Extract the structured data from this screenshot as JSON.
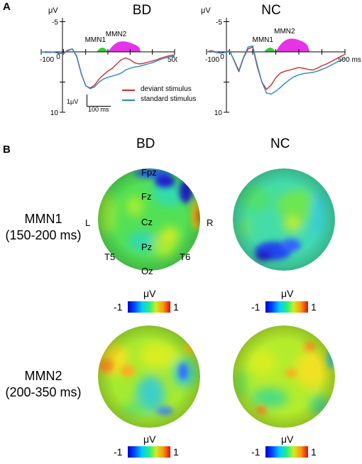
{
  "panel_a": {
    "letter": "A",
    "unit_label": "μV",
    "legend": {
      "deviant_label": "deviant stimulus",
      "standard_label": "standard stimulus",
      "deviant_color": "#d42a2a",
      "standard_color": "#2a86c9"
    },
    "scale_bar": {
      "amplitude_label": "1μV",
      "time_label": "100 ms"
    },
    "mmn1_fill_color": "#33cc33",
    "mmn2_fill_color": "#e633e6"
  },
  "panel_b": {
    "letter": "B",
    "row1_label_line1": "MMN1",
    "row1_label_line2": "(150-200 ms)",
    "row2_label_line1": "MMN2",
    "row2_label_line2": "(200-350 ms)",
    "electrodes": {
      "fpz": "Fpz",
      "fz": "Fz",
      "cz": "Cz",
      "pz": "Pz",
      "oz": "Oz",
      "t5": "T5",
      "t6": "T6",
      "left": "L",
      "right": "R"
    },
    "colorbar": {
      "unit": "μV",
      "min_label": "-1",
      "max_label": "1"
    }
  },
  "chart_data": [
    {
      "type": "line",
      "title": "BD",
      "x_unit_label": "ms",
      "x_tick_labels": [
        "-100",
        "0",
        "500"
      ],
      "y_tick_labels": [
        "-5",
        "10"
      ],
      "xlim": [
        -100,
        500
      ],
      "ylim": [
        -5,
        10
      ],
      "y_inverted": true,
      "annotations": [
        "MMN1",
        "MMN2"
      ],
      "mmn1_window_ms": [
        150,
        200
      ],
      "mmn2_window_ms": [
        200,
        350
      ],
      "x": [
        -100,
        -80,
        -60,
        -40,
        -20,
        0,
        20,
        40,
        60,
        80,
        100,
        120,
        140,
        160,
        180,
        200,
        220,
        240,
        260,
        280,
        300,
        320,
        340,
        360,
        380,
        400,
        420,
        440,
        460,
        480,
        500
      ],
      "series": [
        {
          "name": "deviant stimulus",
          "values": [
            0,
            0.1,
            0.1,
            0,
            0.3,
            0.2,
            -0.3,
            -0.5,
            0.8,
            3.6,
            5.6,
            6.0,
            5.5,
            4.5,
            3.8,
            3.2,
            2.7,
            2.0,
            1.3,
            1.0,
            1.3,
            1.8,
            2.0,
            1.9,
            1.7,
            1.5,
            1.3,
            1.0,
            0.8,
            0.6,
            0.5
          ]
        },
        {
          "name": "standard stimulus",
          "values": [
            0,
            0.1,
            0,
            0.1,
            0.2,
            0.3,
            -0.2,
            -0.5,
            0.7,
            3.5,
            5.6,
            6.1,
            5.8,
            5.0,
            4.5,
            4.2,
            4.0,
            3.8,
            3.5,
            3.0,
            2.7,
            2.5,
            2.4,
            2.2,
            2.0,
            1.8,
            1.5,
            1.2,
            1.0,
            0.8,
            0.7
          ]
        }
      ]
    },
    {
      "type": "line",
      "title": "NC",
      "x_unit_label": "ms",
      "x_tick_labels": [
        "-100",
        "0",
        "500"
      ],
      "y_tick_labels": [
        "-5",
        "10"
      ],
      "xlim": [
        -100,
        500
      ],
      "ylim": [
        -5,
        10
      ],
      "y_inverted": true,
      "annotations": [
        "MMN1",
        "MMN2"
      ],
      "mmn1_window_ms": [
        150,
        200
      ],
      "mmn2_window_ms": [
        200,
        350
      ],
      "x": [
        -100,
        -80,
        -60,
        -40,
        -20,
        0,
        20,
        40,
        60,
        80,
        100,
        120,
        140,
        160,
        180,
        200,
        220,
        240,
        260,
        280,
        300,
        320,
        340,
        360,
        380,
        400,
        420,
        440,
        460,
        480,
        500
      ],
      "series": [
        {
          "name": "deviant stimulus",
          "values": [
            0,
            -0.2,
            0,
            0.2,
            0.1,
            -0.2,
            1.5,
            3.3,
            1.0,
            -0.5,
            -0.8,
            2.5,
            5.0,
            6.2,
            5.5,
            4.3,
            3.5,
            3.2,
            3.0,
            2.8,
            2.6,
            2.7,
            2.9,
            3.0,
            2.7,
            2.3,
            2.0,
            1.6,
            1.2,
            0.8,
            0.4
          ]
        },
        {
          "name": "standard stimulus",
          "values": [
            0,
            -0.1,
            0.1,
            0.2,
            0.1,
            -0.1,
            1.4,
            3.1,
            0.9,
            -0.8,
            -1.0,
            2.2,
            5.0,
            6.8,
            7.0,
            6.5,
            5.9,
            5.2,
            4.6,
            4.1,
            3.8,
            3.6,
            3.5,
            3.4,
            3.2,
            2.9,
            2.6,
            2.2,
            1.8,
            1.4,
            1.1
          ]
        }
      ]
    }
  ]
}
